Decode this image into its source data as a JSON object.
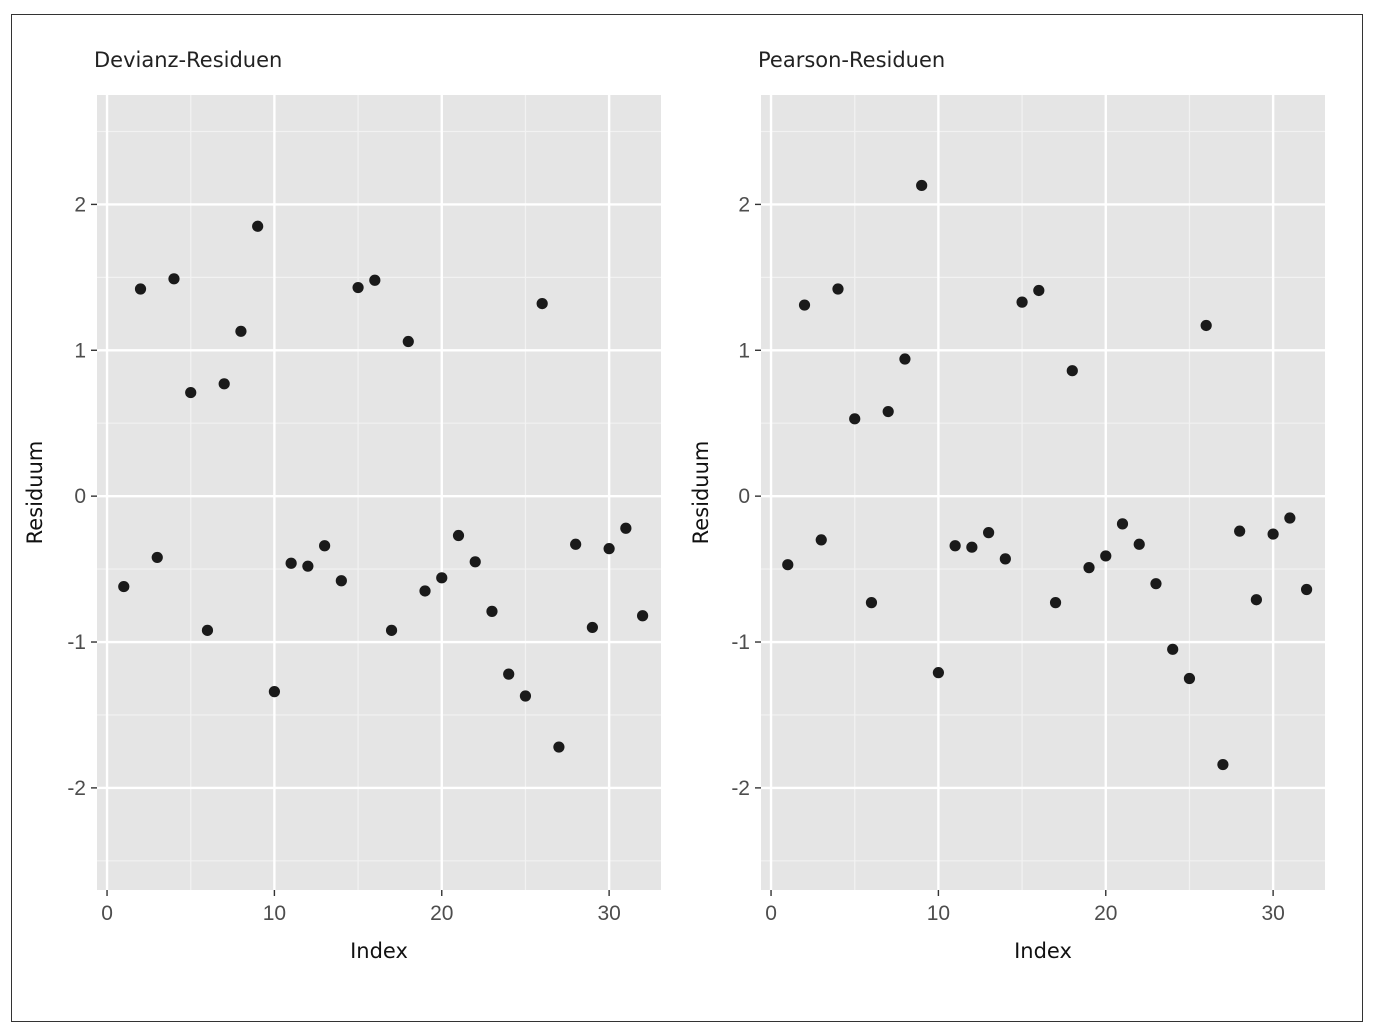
{
  "chart_data": [
    {
      "type": "scatter",
      "title": "Devianz-Residuen",
      "xlabel": "Index",
      "ylabel": "Residuum",
      "xlim": [
        -0.6,
        33.1
      ],
      "ylim": [
        -2.7,
        2.75
      ],
      "xticks": [
        0,
        10,
        20,
        30
      ],
      "xtick_labels": [
        "0",
        "10",
        "20",
        "30"
      ],
      "yticks": [
        2,
        1,
        0,
        -1,
        -2
      ],
      "ytick_labels": [
        "2",
        "1",
        "0",
        "-1",
        "-2"
      ],
      "grid": true,
      "background": "#e5e5e5",
      "point_color": "#1a1a1a",
      "x": [
        1,
        2,
        3,
        4,
        5,
        6,
        7,
        8,
        9,
        10,
        11,
        12,
        13,
        14,
        15,
        16,
        17,
        18,
        19,
        20,
        21,
        22,
        23,
        24,
        25,
        26,
        27,
        28,
        29,
        30,
        31,
        32
      ],
      "y": [
        -0.62,
        1.42,
        -0.42,
        1.49,
        0.71,
        -0.92,
        0.77,
        1.13,
        1.85,
        -1.34,
        -0.46,
        -0.48,
        -0.34,
        -0.58,
        1.43,
        1.48,
        -0.92,
        1.06,
        -0.65,
        -0.56,
        -0.27,
        -0.45,
        -0.79,
        -1.22,
        -1.37,
        1.32,
        -1.72,
        -0.33,
        -0.9,
        -0.36,
        -0.22,
        -0.82
      ]
    },
    {
      "type": "scatter",
      "title": "Pearson-Residuen",
      "xlabel": "Index",
      "ylabel": "Residuum",
      "xlim": [
        -0.6,
        33.1
      ],
      "ylim": [
        -2.7,
        2.75
      ],
      "xticks": [
        0,
        10,
        20,
        30
      ],
      "xtick_labels": [
        "0",
        "10",
        "20",
        "30"
      ],
      "yticks": [
        2,
        1,
        0,
        -1,
        -2
      ],
      "ytick_labels": [
        "2",
        "1",
        "0",
        "-1",
        "-2"
      ],
      "grid": true,
      "background": "#e5e5e5",
      "point_color": "#1a1a1a",
      "x": [
        1,
        2,
        3,
        4,
        5,
        6,
        7,
        8,
        9,
        10,
        11,
        12,
        13,
        14,
        15,
        16,
        17,
        18,
        19,
        20,
        21,
        22,
        23,
        24,
        25,
        26,
        27,
        28,
        29,
        30,
        31,
        32
      ],
      "y": [
        -0.47,
        1.31,
        -0.3,
        1.42,
        0.53,
        -0.73,
        0.58,
        0.94,
        2.13,
        -1.21,
        -0.34,
        -0.35,
        -0.25,
        -0.43,
        1.33,
        1.41,
        -0.73,
        0.86,
        -0.49,
        -0.41,
        -0.19,
        -0.33,
        -0.6,
        -1.05,
        -1.25,
        1.17,
        -1.84,
        -0.24,
        -0.71,
        -0.26,
        -0.15,
        -0.64
      ]
    }
  ]
}
